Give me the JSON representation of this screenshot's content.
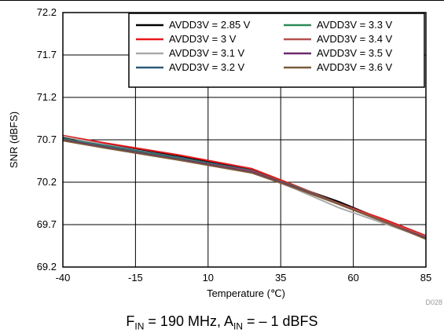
{
  "chart_data": {
    "type": "line",
    "xlabel": "Temperature (℃)",
    "ylabel": "SNR (dBFS)",
    "xlim": [
      -40,
      85
    ],
    "ylim": [
      69.2,
      72.2
    ],
    "x_ticks": [
      -40,
      -15,
      10,
      35,
      60,
      85
    ],
    "x_tick_labels": [
      "-40",
      "-15",
      "10",
      "35",
      "60",
      "85"
    ],
    "y_ticks": [
      69.2,
      69.7,
      70.2,
      70.7,
      71.2,
      71.7,
      72.2
    ],
    "y_tick_labels": [
      "69.2",
      "69.7",
      "70.2",
      "70.7",
      "71.2",
      "71.7",
      "72.2"
    ],
    "grid": true,
    "legend_position": "top-right",
    "x": [
      -40,
      -25,
      0,
      25,
      40,
      55,
      70,
      85
    ],
    "series": [
      {
        "name": "AVDD3V = 2.85 V",
        "color": "#000000",
        "values": [
          70.73,
          70.65,
          70.51,
          70.35,
          70.15,
          69.97,
          69.76,
          69.55
        ]
      },
      {
        "name": "AVDD3V = 3 V",
        "color": "#e8191b",
        "values": [
          70.75,
          70.66,
          70.52,
          70.36,
          70.16,
          69.95,
          69.77,
          69.57
        ]
      },
      {
        "name": "AVDD3V = 3.1 V",
        "color": "#aaaaaa",
        "values": [
          70.74,
          70.64,
          70.49,
          70.33,
          70.12,
          69.9,
          69.72,
          69.54
        ]
      },
      {
        "name": "AVDD3V = 3.2 V",
        "color": "#2f5a7a",
        "values": [
          70.71,
          70.63,
          70.49,
          70.34,
          70.14,
          69.94,
          69.74,
          69.54
        ]
      },
      {
        "name": "AVDD3V = 3.3 V",
        "color": "#2e8b57",
        "values": [
          70.71,
          70.62,
          70.48,
          70.33,
          70.15,
          69.95,
          69.75,
          69.55
        ]
      },
      {
        "name": "AVDD3V = 3.4 V",
        "color": "#b5514d",
        "values": [
          70.7,
          70.61,
          70.47,
          70.33,
          70.14,
          69.95,
          69.75,
          69.56
        ]
      },
      {
        "name": "AVDD3V = 3.5 V",
        "color": "#6a2a6e",
        "values": [
          70.7,
          70.61,
          70.47,
          70.32,
          70.14,
          69.94,
          69.74,
          69.54
        ]
      },
      {
        "name": "AVDD3V = 3.6 V",
        "color": "#7a5c3a",
        "values": [
          70.69,
          70.6,
          70.46,
          70.31,
          70.13,
          69.94,
          69.74,
          69.53
        ]
      }
    ],
    "figure_code": "D028",
    "caption": {
      "f_main": "F",
      "f_sub": "IN",
      "f_text": " = 190 MHz, ",
      "a_main": "A",
      "a_sub": "IN",
      "a_text": " = – 1 dBFS"
    }
  }
}
